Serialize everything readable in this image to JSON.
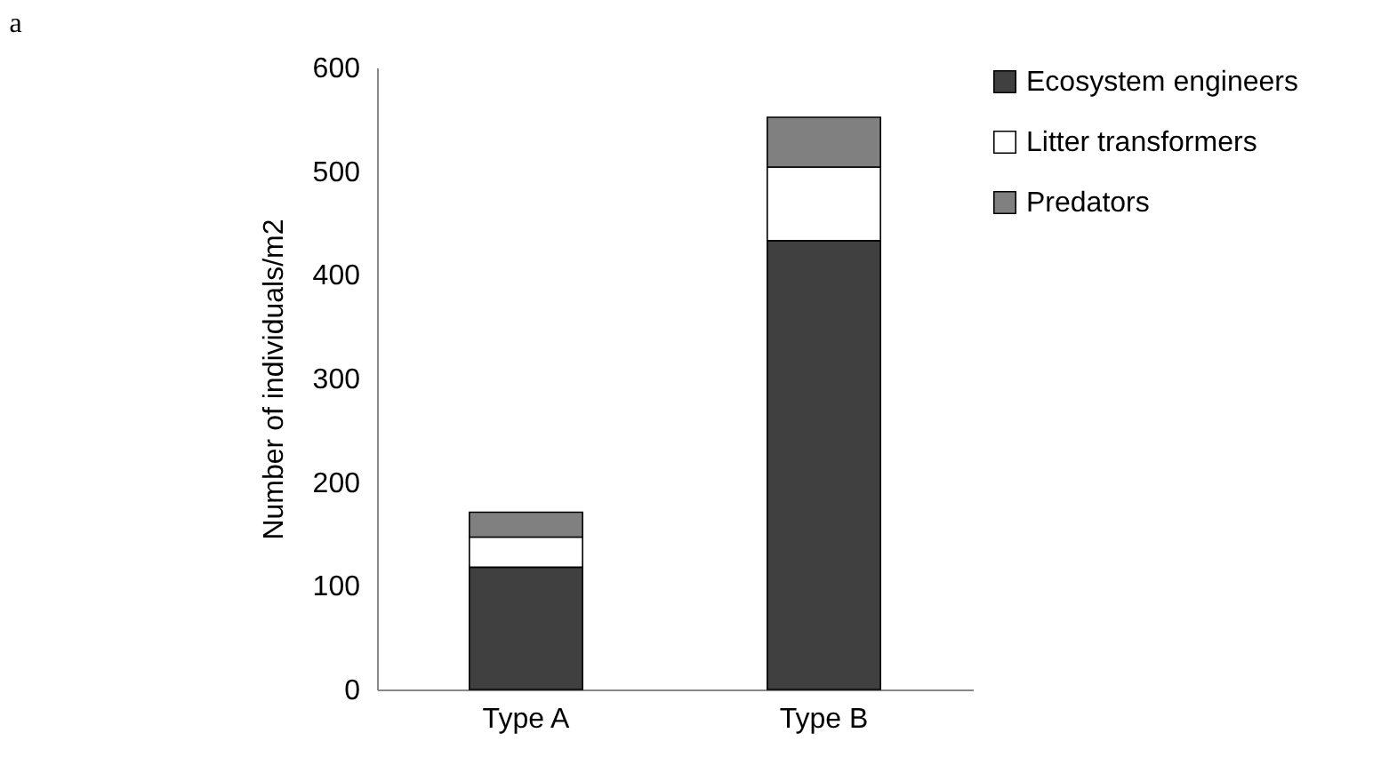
{
  "chart_data": {
    "type": "bar",
    "stacked": true,
    "ylabel": "Number of individuals/m2",
    "annotations": [
      "a"
    ],
    "categories": [
      "Type A",
      "Type B"
    ],
    "series": [
      {
        "name": "Ecosystem engineers",
        "color": "#404040",
        "values": [
          118,
          433
        ]
      },
      {
        "name": "Litter transformers",
        "color": "#ffffff",
        "values": [
          29,
          71
        ]
      },
      {
        "name": "Predators",
        "color": "#808080",
        "values": [
          24,
          48
        ]
      }
    ],
    "ylim": [
      0,
      600
    ],
    "yticks": [
      0,
      100,
      200,
      300,
      400,
      500,
      600
    ],
    "grid": false,
    "legend": "right"
  }
}
